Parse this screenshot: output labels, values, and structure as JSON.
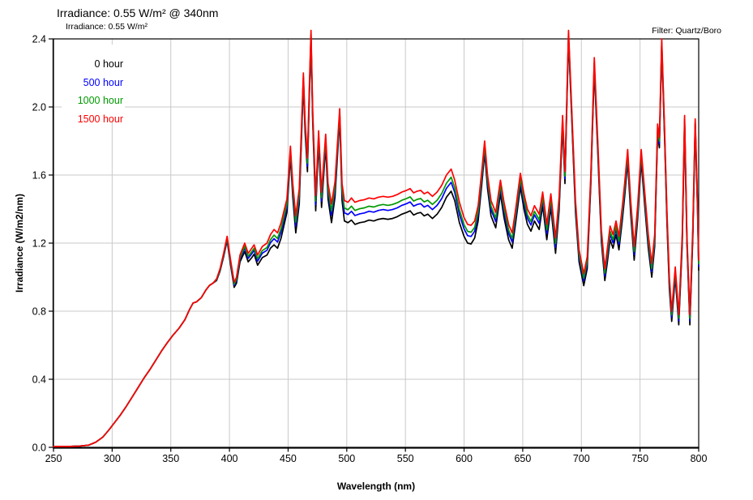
{
  "chart_data": {
    "type": "line",
    "title": "Irradiance: 0.55 W/m² @ 340nm",
    "subtitle": "Irradiance: 0.55 W/m²",
    "annotation": "Filter: Quartz/Boro",
    "xlabel": "Wavelength (nm)",
    "ylabel": "Irradiance (W/m2/nm)",
    "xlim": [
      250,
      800
    ],
    "ylim": [
      0,
      2.4
    ],
    "xtick_labels": [
      "250",
      "300",
      "350",
      "400",
      "450",
      "500",
      "550",
      "600",
      "650",
      "700",
      "750",
      "800"
    ],
    "ytick_labels": [
      "0.0",
      "0.4",
      "0.8",
      "1.2",
      "1.6",
      "2.0",
      "2.4"
    ],
    "grid": true,
    "grid_color": "#c9c9c9",
    "legend_position": "top-left",
    "x": [
      250,
      262,
      272,
      280,
      286,
      292,
      297,
      302,
      307,
      312,
      317,
      322,
      327,
      332,
      337,
      342,
      347,
      352,
      357,
      362,
      366,
      369,
      372,
      376,
      380,
      383,
      386,
      389,
      392,
      395,
      398,
      401,
      404,
      406,
      409,
      413,
      416,
      419,
      421,
      424,
      428,
      432,
      435,
      438,
      441,
      444,
      449,
      452,
      454,
      456.5,
      459.5,
      463,
      464.5,
      466.5,
      468,
      469.5,
      471,
      473.5,
      476,
      478.5,
      482,
      484,
      487,
      490,
      494,
      496,
      498,
      501,
      504,
      507,
      511,
      515,
      519,
      523,
      527,
      531,
      535,
      539,
      543,
      547,
      551,
      554,
      557,
      560,
      563,
      566,
      569,
      573,
      577,
      581,
      585,
      589,
      592,
      596,
      600,
      603,
      606,
      609,
      612,
      615,
      617.5,
      620,
      623,
      627,
      631,
      634,
      638,
      641,
      644,
      648,
      651,
      654,
      657,
      660,
      664,
      667,
      670.5,
      674,
      678,
      681,
      684,
      686,
      689,
      692,
      695,
      698,
      702,
      705,
      708,
      711,
      714,
      717,
      720,
      722,
      724.5,
      727,
      729.5,
      732,
      735,
      737,
      739.5,
      742,
      745,
      748,
      751,
      754,
      757,
      760,
      762.5,
      765,
      766.5,
      768.5,
      771,
      773,
      775,
      777,
      780,
      783,
      786,
      788,
      790,
      792.5,
      795,
      797,
      799,
      800
    ],
    "series": [
      {
        "name": "0 hour",
        "color": "#000000",
        "values": [
          0.005,
          0.005,
          0.007,
          0.013,
          0.03,
          0.06,
          0.1,
          0.145,
          0.19,
          0.24,
          0.295,
          0.35,
          0.405,
          0.455,
          0.51,
          0.565,
          0.615,
          0.66,
          0.7,
          0.75,
          0.81,
          0.848,
          0.855,
          0.88,
          0.925,
          0.952,
          0.965,
          0.98,
          1.035,
          1.12,
          1.215,
          1.07,
          0.94,
          0.965,
          1.09,
          1.15,
          1.09,
          1.115,
          1.135,
          1.07,
          1.115,
          1.13,
          1.17,
          1.19,
          1.17,
          1.23,
          1.38,
          1.71,
          1.47,
          1.26,
          1.43,
          2.14,
          1.85,
          1.62,
          2.03,
          2.39,
          1.91,
          1.39,
          1.79,
          1.41,
          1.77,
          1.46,
          1.32,
          1.47,
          1.93,
          1.45,
          1.33,
          1.32,
          1.335,
          1.31,
          1.32,
          1.325,
          1.335,
          1.33,
          1.34,
          1.345,
          1.34,
          1.345,
          1.355,
          1.37,
          1.38,
          1.39,
          1.365,
          1.375,
          1.38,
          1.36,
          1.37,
          1.345,
          1.37,
          1.41,
          1.47,
          1.505,
          1.45,
          1.32,
          1.24,
          1.2,
          1.195,
          1.23,
          1.33,
          1.54,
          1.73,
          1.52,
          1.36,
          1.29,
          1.49,
          1.35,
          1.22,
          1.17,
          1.32,
          1.53,
          1.4,
          1.31,
          1.27,
          1.33,
          1.28,
          1.42,
          1.22,
          1.41,
          1.14,
          1.39,
          1.89,
          1.55,
          2.4,
          1.89,
          1.38,
          1.09,
          0.95,
          1.05,
          1.54,
          2.22,
          1.73,
          1.21,
          0.98,
          1.08,
          1.22,
          1.17,
          1.25,
          1.16,
          1.34,
          1.48,
          1.68,
          1.37,
          1.1,
          1.34,
          1.68,
          1.42,
          1.17,
          1.0,
          1.18,
          1.84,
          1.76,
          2.35,
          1.8,
          1.31,
          0.93,
          0.74,
          1.0,
          0.72,
          1.19,
          1.9,
          1.19,
          0.72,
          1.24,
          1.88,
          1.39,
          1.04
        ]
      },
      {
        "name": "500 hour",
        "color": "#0000ff",
        "values": [
          0.005,
          0.005,
          0.007,
          0.013,
          0.03,
          0.06,
          0.1,
          0.145,
          0.19,
          0.24,
          0.295,
          0.35,
          0.405,
          0.455,
          0.51,
          0.565,
          0.615,
          0.66,
          0.7,
          0.75,
          0.81,
          0.848,
          0.855,
          0.88,
          0.925,
          0.952,
          0.965,
          0.984,
          1.041,
          1.128,
          1.225,
          1.082,
          0.952,
          0.979,
          1.106,
          1.17,
          1.11,
          1.137,
          1.157,
          1.094,
          1.141,
          1.158,
          1.202,
          1.226,
          1.206,
          1.266,
          1.412,
          1.734,
          1.502,
          1.3,
          1.466,
          2.164,
          1.878,
          1.652,
          2.058,
          2.414,
          1.938,
          1.426,
          1.818,
          1.446,
          1.798,
          1.496,
          1.364,
          1.506,
          1.954,
          1.49,
          1.378,
          1.368,
          1.387,
          1.362,
          1.372,
          1.377,
          1.387,
          1.382,
          1.392,
          1.397,
          1.392,
          1.397,
          1.407,
          1.422,
          1.432,
          1.442,
          1.417,
          1.427,
          1.432,
          1.412,
          1.422,
          1.397,
          1.422,
          1.462,
          1.522,
          1.557,
          1.498,
          1.368,
          1.284,
          1.244,
          1.239,
          1.27,
          1.366,
          1.572,
          1.758,
          1.552,
          1.396,
          1.326,
          1.522,
          1.386,
          1.256,
          1.206,
          1.352,
          1.562,
          1.436,
          1.346,
          1.306,
          1.366,
          1.316,
          1.452,
          1.256,
          1.442,
          1.176,
          1.422,
          1.914,
          1.578,
          2.42,
          1.914,
          1.408,
          1.118,
          0.978,
          1.078,
          1.564,
          2.248,
          1.758,
          1.238,
          1.008,
          1.112,
          1.252,
          1.202,
          1.282,
          1.192,
          1.372,
          1.512,
          1.708,
          1.402,
          1.132,
          1.372,
          1.708,
          1.452,
          1.202,
          1.032,
          1.208,
          1.864,
          1.784,
          2.37,
          1.824,
          1.338,
          0.958,
          0.764,
          1.024,
          0.744,
          1.214,
          1.92,
          1.214,
          0.744,
          1.264,
          1.9,
          1.414,
          1.064
        ]
      },
      {
        "name": "1000 hour",
        "color": "#009900",
        "values": [
          0.005,
          0.005,
          0.007,
          0.013,
          0.03,
          0.06,
          0.1,
          0.145,
          0.19,
          0.24,
          0.295,
          0.35,
          0.405,
          0.455,
          0.51,
          0.565,
          0.615,
          0.66,
          0.7,
          0.75,
          0.81,
          0.848,
          0.855,
          0.88,
          0.925,
          0.952,
          0.965,
          0.986,
          1.044,
          1.133,
          1.231,
          1.089,
          0.959,
          0.987,
          1.115,
          1.182,
          1.122,
          1.15,
          1.17,
          1.108,
          1.156,
          1.174,
          1.22,
          1.247,
          1.227,
          1.287,
          1.43,
          1.748,
          1.52,
          1.323,
          1.487,
          2.178,
          1.894,
          1.67,
          2.074,
          2.428,
          1.954,
          1.447,
          1.834,
          1.467,
          1.814,
          1.517,
          1.389,
          1.527,
          1.968,
          1.513,
          1.406,
          1.396,
          1.417,
          1.392,
          1.402,
          1.407,
          1.417,
          1.412,
          1.422,
          1.427,
          1.422,
          1.427,
          1.437,
          1.452,
          1.462,
          1.472,
          1.447,
          1.457,
          1.462,
          1.442,
          1.452,
          1.427,
          1.452,
          1.492,
          1.552,
          1.587,
          1.526,
          1.396,
          1.309,
          1.269,
          1.264,
          1.293,
          1.387,
          1.59,
          1.774,
          1.57,
          1.417,
          1.347,
          1.54,
          1.407,
          1.277,
          1.227,
          1.37,
          1.58,
          1.457,
          1.367,
          1.327,
          1.387,
          1.337,
          1.47,
          1.277,
          1.46,
          1.197,
          1.44,
          1.928,
          1.594,
          2.432,
          1.928,
          1.424,
          1.134,
          0.994,
          1.094,
          1.578,
          2.264,
          1.774,
          1.254,
          1.024,
          1.13,
          1.27,
          1.22,
          1.3,
          1.21,
          1.39,
          1.53,
          1.724,
          1.42,
          1.15,
          1.39,
          1.724,
          1.47,
          1.22,
          1.05,
          1.224,
          1.878,
          1.798,
          2.382,
          1.838,
          1.354,
          0.974,
          0.778,
          1.038,
          0.758,
          1.228,
          1.932,
          1.228,
          0.758,
          1.278,
          1.912,
          1.428,
          1.078
        ]
      },
      {
        "name": "1500 hour",
        "color": "#ff0000",
        "values": [
          0.005,
          0.005,
          0.007,
          0.013,
          0.03,
          0.06,
          0.1,
          0.145,
          0.19,
          0.24,
          0.295,
          0.35,
          0.405,
          0.455,
          0.51,
          0.565,
          0.615,
          0.66,
          0.7,
          0.75,
          0.81,
          0.848,
          0.855,
          0.88,
          0.925,
          0.952,
          0.965,
          0.99,
          1.05,
          1.14,
          1.24,
          1.1,
          0.97,
          1.0,
          1.13,
          1.2,
          1.14,
          1.17,
          1.19,
          1.13,
          1.18,
          1.2,
          1.25,
          1.28,
          1.26,
          1.32,
          1.46,
          1.77,
          1.55,
          1.36,
          1.52,
          2.2,
          1.92,
          1.7,
          2.1,
          2.45,
          1.98,
          1.48,
          1.86,
          1.5,
          1.84,
          1.55,
          1.43,
          1.56,
          1.99,
          1.55,
          1.45,
          1.44,
          1.465,
          1.44,
          1.45,
          1.455,
          1.465,
          1.46,
          1.47,
          1.475,
          1.47,
          1.475,
          1.485,
          1.5,
          1.51,
          1.52,
          1.495,
          1.505,
          1.51,
          1.49,
          1.5,
          1.475,
          1.5,
          1.54,
          1.6,
          1.635,
          1.57,
          1.44,
          1.35,
          1.31,
          1.305,
          1.33,
          1.42,
          1.62,
          1.8,
          1.6,
          1.45,
          1.38,
          1.57,
          1.44,
          1.31,
          1.26,
          1.4,
          1.61,
          1.49,
          1.4,
          1.36,
          1.42,
          1.37,
          1.5,
          1.31,
          1.49,
          1.23,
          1.47,
          1.95,
          1.62,
          2.45,
          1.95,
          1.45,
          1.16,
          1.02,
          1.12,
          1.6,
          2.29,
          1.8,
          1.28,
          1.05,
          1.16,
          1.3,
          1.25,
          1.33,
          1.24,
          1.42,
          1.56,
          1.75,
          1.45,
          1.18,
          1.42,
          1.75,
          1.5,
          1.25,
          1.08,
          1.25,
          1.9,
          1.82,
          2.4,
          1.86,
          1.38,
          1.0,
          0.8,
          1.06,
          0.78,
          1.25,
          1.95,
          1.25,
          0.78,
          1.3,
          1.93,
          1.45,
          1.1
        ]
      }
    ]
  }
}
